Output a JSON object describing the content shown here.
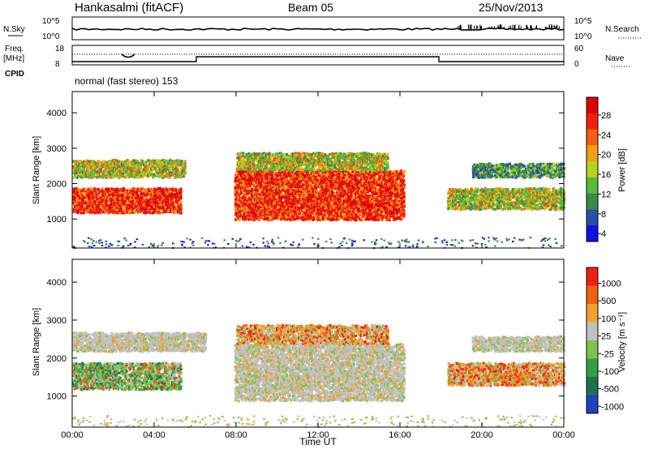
{
  "header": {
    "station": "Hankasalmi (fitACF)",
    "beam": "Beam 05",
    "date": "25/Nov/2013"
  },
  "top_panels": {
    "nsky_label": "N.Sky",
    "nsky_ticks": [
      "10^5",
      "10^0"
    ],
    "nsearch_label": "N.Search",
    "nsearch_ticks": [
      "10^5",
      "10^0"
    ],
    "freq_label": "Freq.",
    "freq_unit": "[MHz]",
    "freq_ticks": [
      "18",
      "8"
    ],
    "nave_label": "Nave",
    "nave_ticks": [
      "60",
      "0"
    ],
    "cpid_label": "CPID",
    "cpid_value": "normal (fast stereo) 153"
  },
  "colors": {
    "power_scale": [
      "#1010e0",
      "#2a4fa0",
      "#3a8a4a",
      "#5ab83a",
      "#b8d020",
      "#f0a010",
      "#f06010",
      "#f02010",
      "#e00000"
    ],
    "velocity_scale": [
      "#2040c0",
      "#207050",
      "#30a040",
      "#80c050",
      "#c0c0c0",
      "#f0a030",
      "#f06010",
      "#f02010"
    ]
  },
  "chart_data": [
    {
      "type": "heatmap",
      "title": "Power",
      "ylabel": "Slant Range [km]",
      "xlabel": "Time UT",
      "colorbar_label": "Power [dB]",
      "colorbar_ticks": [
        "28",
        "24",
        "20",
        "16",
        "12",
        "8",
        "4"
      ],
      "ylim": [
        180,
        4600
      ],
      "yticks": [
        "4000",
        "3000",
        "2000",
        "1000"
      ],
      "xticks": [
        "00:00",
        "04:00",
        "08:00",
        "12:00",
        "16:00",
        "20:00",
        "00:00"
      ],
      "bands": [
        {
          "t0": 0.0,
          "t1": 5.3,
          "r0": 1200,
          "r1": 1900,
          "level": "high"
        },
        {
          "t0": 0.0,
          "t1": 5.5,
          "r0": 2200,
          "r1": 2700,
          "level": "mid"
        },
        {
          "t0": 7.9,
          "t1": 16.2,
          "r0": 1000,
          "r1": 2400,
          "level": "high"
        },
        {
          "t0": 8.0,
          "t1": 15.4,
          "r0": 2400,
          "r1": 2900,
          "level": "mid"
        },
        {
          "t0": 18.3,
          "t1": 24.0,
          "r0": 1300,
          "r1": 1900,
          "level": "mid"
        },
        {
          "t0": 19.5,
          "t1": 24.0,
          "r0": 2200,
          "r1": 2600,
          "level": "low"
        }
      ]
    },
    {
      "type": "heatmap",
      "title": "Velocity",
      "ylabel": "Slant Range [km]",
      "xlabel": "Time UT",
      "colorbar_label": "Velocity [m s⁻¹]",
      "colorbar_ticks": [
        "1000",
        "500",
        "100",
        "25",
        "-25",
        "-100",
        "-500",
        "-1000"
      ],
      "ylim": [
        180,
        4600
      ],
      "yticks": [
        "4000",
        "3000",
        "2000",
        "1000"
      ],
      "xticks": [
        "00:00",
        "04:00",
        "08:00",
        "12:00",
        "16:00",
        "20:00",
        "00:00"
      ],
      "bands": [
        {
          "t0": 0.0,
          "t1": 5.3,
          "r0": 1200,
          "r1": 1900,
          "level": "green"
        },
        {
          "t0": 0.0,
          "t1": 6.5,
          "r0": 2200,
          "r1": 2700,
          "level": "gray"
        },
        {
          "t0": 7.9,
          "t1": 16.2,
          "r0": 900,
          "r1": 2400,
          "level": "gray"
        },
        {
          "t0": 8.0,
          "t1": 15.4,
          "r0": 2400,
          "r1": 2900,
          "level": "orange"
        },
        {
          "t0": 18.3,
          "t1": 24.0,
          "r0": 1300,
          "r1": 1900,
          "level": "orange"
        },
        {
          "t0": 19.5,
          "t1": 24.0,
          "r0": 2200,
          "r1": 2600,
          "level": "gray"
        }
      ]
    }
  ]
}
